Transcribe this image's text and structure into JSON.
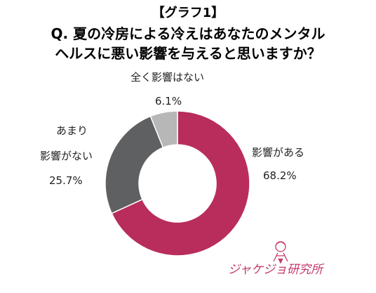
{
  "header": {
    "graph_label": "【グラフ1】",
    "title_line_1": "Q. 夏の冷房による冷えはあなたのメンタル",
    "title_line_2": "ヘルスに悪い影響を与えると思いますか？"
  },
  "chart_data": {
    "type": "pie",
    "variant": "donut",
    "title": "Q. 夏の冷房による冷えはあなたのメンタルヘルスに悪い影響を与えると思いますか？",
    "slices": [
      {
        "label": "影響がある",
        "label_lines": [
          "影響がある"
        ],
        "value": 68.2,
        "value_text": "68.2%",
        "color": "#b82d5c"
      },
      {
        "label": "あまり影響がない",
        "label_lines": [
          "あまり",
          "影響がない"
        ],
        "value": 25.7,
        "value_text": "25.7%",
        "color": "#5f6062"
      },
      {
        "label": "全く影響はない",
        "label_lines": [
          "全く影響はない"
        ],
        "value": 6.1,
        "value_text": "6.1%",
        "color": "#b7b7b7"
      }
    ],
    "start_angle": "top",
    "direction": "clockwise",
    "legend": "none"
  },
  "logo": {
    "text": "ジャケジョ研究所"
  }
}
